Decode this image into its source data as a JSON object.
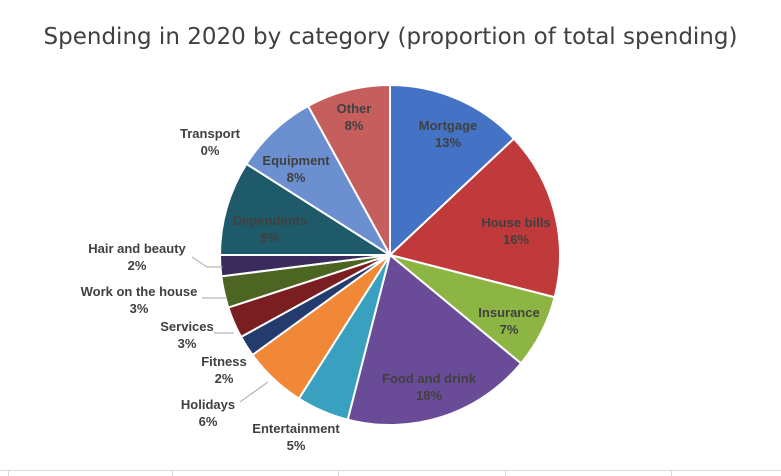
{
  "chart_data": {
    "type": "pie",
    "title": "Spending in 2020 by category (proportion of total spending)",
    "slices": [
      {
        "label": "Mortgage",
        "value": 13,
        "display": "13%",
        "color": "#4472c4"
      },
      {
        "label": "House bills",
        "value": 16,
        "display": "16%",
        "color": "#c0393b"
      },
      {
        "label": "Insurance",
        "value": 7,
        "display": "7%",
        "color": "#8db543"
      },
      {
        "label": "Food and drink",
        "value": 18,
        "display": "18%",
        "color": "#6a4b97"
      },
      {
        "label": "Entertainment",
        "value": 5,
        "display": "5%",
        "color": "#3aa0c0"
      },
      {
        "label": "Holidays",
        "value": 6,
        "display": "6%",
        "color": "#f08838"
      },
      {
        "label": "Fitness",
        "value": 2,
        "display": "2%",
        "color": "#243b6e"
      },
      {
        "label": "Services",
        "value": 3,
        "display": "3%",
        "color": "#7a1e22"
      },
      {
        "label": "Work on the house",
        "value": 3,
        "display": "3%",
        "color": "#4d6522"
      },
      {
        "label": "Hair and beauty",
        "value": 2,
        "display": "2%",
        "color": "#3b2a5c"
      },
      {
        "label": "Dependents",
        "value": 9,
        "display": "9%",
        "color": "#1f5a6b"
      },
      {
        "label": "Transport",
        "value": 0,
        "display": "0%",
        "color": "#d66e26"
      },
      {
        "label": "Equipment",
        "value": 8,
        "display": "8%",
        "color": "#6b8fcf"
      },
      {
        "label": "Other",
        "value": 8,
        "display": "8%",
        "color": "#c65e5e"
      }
    ],
    "legend": "none",
    "data_labels": "category name and percentage"
  }
}
